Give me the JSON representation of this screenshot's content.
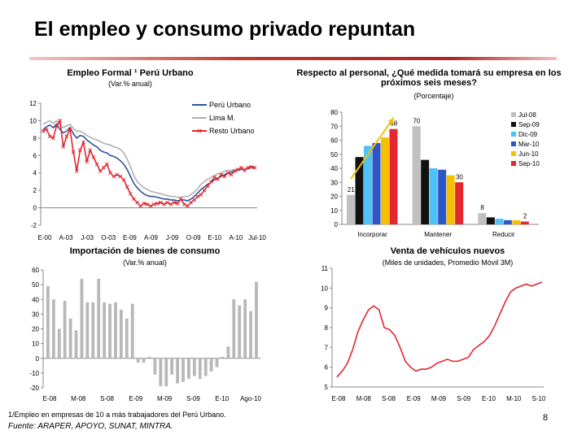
{
  "title": "El empleo y consumo privado repuntan",
  "footnote": "1/Empleo en empresas de 10 a más trabajadores del Perú Urbano.",
  "source": "Fuente: ARAPER, APOYO, SUNAT, MINTRA.",
  "page_number": "8",
  "colors": {
    "rule": "#c0392b"
  },
  "chart_data": [
    {
      "type": "line",
      "title": "Empleo Formal ¹ Perú Urbano",
      "subtitle": "(Var.% anual)",
      "ylim": [
        -2,
        12
      ],
      "yticks": [
        "-2",
        "0",
        "2",
        "4",
        "6",
        "8",
        "10",
        "12"
      ],
      "xticks": [
        "E-00",
        "A-03",
        "J-03",
        "O-03",
        "E-09",
        "A-09",
        "J-09",
        "O-09",
        "E-10",
        "A-10",
        "Jul-10"
      ],
      "x": [
        0,
        1,
        2,
        3,
        4,
        5,
        6,
        7,
        8,
        9,
        10,
        11,
        12,
        13,
        14,
        15,
        16,
        17,
        18,
        19,
        20,
        21,
        22,
        23,
        24,
        25,
        26,
        27,
        28,
        29,
        30,
        31,
        32,
        33,
        34,
        35,
        36,
        37,
        38,
        39,
        40,
        41,
        42,
        43,
        44,
        45,
        46,
        47,
        48,
        49,
        50,
        51,
        52,
        53,
        54,
        55,
        56,
        57,
        58,
        59,
        60,
        61,
        62,
        63
      ],
      "series": [
        {
          "name": "Perú Urbano",
          "color": "#2e5597",
          "values": [
            9.0,
            9.3,
            9.5,
            9.2,
            9.6,
            9.0,
            8.6,
            8.8,
            9.2,
            8.5,
            8.0,
            8.3,
            8.2,
            7.8,
            7.5,
            7.2,
            7.0,
            6.6,
            6.4,
            6.3,
            6.0,
            5.9,
            5.7,
            5.4,
            5.0,
            4.4,
            3.6,
            2.8,
            2.3,
            1.9,
            1.6,
            1.4,
            1.3,
            1.3,
            1.2,
            1.1,
            1.0,
            1.0,
            0.9,
            0.9,
            0.8,
            0.9,
            0.9,
            0.8,
            1.0,
            1.3,
            1.7,
            2.1,
            2.4,
            2.7,
            2.9,
            3.2,
            3.4,
            3.6,
            3.8,
            4.0,
            4.1,
            4.2,
            4.3,
            4.4,
            4.4,
            4.5,
            4.6,
            4.5
          ]
        },
        {
          "name": "Lima M.",
          "color": "#b0b0b0",
          "values": [
            9.6,
            9.8,
            10.0,
            9.7,
            10.0,
            9.5,
            9.2,
            9.4,
            9.6,
            9.1,
            8.8,
            8.8,
            8.6,
            8.3,
            8.1,
            7.9,
            7.8,
            7.6,
            7.4,
            7.3,
            7.2,
            7.0,
            6.9,
            6.7,
            6.3,
            5.6,
            4.7,
            3.7,
            3.0,
            2.6,
            2.3,
            2.1,
            1.9,
            1.8,
            1.7,
            1.6,
            1.5,
            1.4,
            1.3,
            1.3,
            1.2,
            1.2,
            1.3,
            1.3,
            1.5,
            1.8,
            2.2,
            2.7,
            3.0,
            3.3,
            3.5,
            3.7,
            3.9,
            4.0,
            4.2,
            4.3,
            4.3,
            4.4,
            4.4,
            4.5,
            4.5,
            4.6,
            4.6,
            4.5
          ]
        },
        {
          "name": "Resto Urbano",
          "color": "#e3262f",
          "marker": "x",
          "values": [
            8.8,
            9.0,
            8.2,
            8.0,
            9.4,
            10.0,
            7.0,
            8.2,
            9.0,
            6.4,
            4.2,
            6.6,
            7.5,
            5.3,
            6.6,
            5.8,
            5.0,
            4.2,
            4.6,
            5.0,
            4.0,
            3.6,
            3.8,
            3.6,
            3.2,
            2.4,
            1.6,
            1.0,
            0.6,
            0.2,
            0.5,
            0.4,
            0.2,
            0.4,
            0.5,
            0.6,
            0.4,
            0.6,
            0.4,
            0.6,
            0.5,
            1.0,
            0.4,
            0.2,
            0.6,
            0.9,
            1.3,
            1.5,
            2.0,
            2.5,
            3.0,
            3.5,
            3.3,
            3.8,
            3.6,
            4.0,
            3.8,
            4.2,
            4.4,
            4.6,
            4.3,
            4.6,
            4.7,
            4.6
          ]
        }
      ]
    },
    {
      "type": "bar",
      "title": "Respecto al personal, ¿Qué medida tomará su empresa en los próximos seis meses?",
      "subtitle": "(Porcentaje)",
      "ylim": [
        0,
        80
      ],
      "yticks": [
        "0",
        "10",
        "20",
        "30",
        "40",
        "50",
        "60",
        "70",
        "80"
      ],
      "categories": [
        "Incorporar",
        "Mantener",
        "Reducir"
      ],
      "series": [
        {
          "name": "Jul-08",
          "color": "#c0c0c0",
          "values": [
            21,
            70,
            8
          ]
        },
        {
          "name": "Sep-09",
          "color": "#111111",
          "values": [
            48,
            46,
            5
          ]
        },
        {
          "name": "Dic-09",
          "color": "#4fc3f7",
          "values": [
            56,
            40,
            4
          ]
        },
        {
          "name": "Mar-10",
          "color": "#2f56c6",
          "values": [
            58,
            39,
            3
          ]
        },
        {
          "name": "Jun-10",
          "color": "#f6c000",
          "values": [
            62,
            35,
            3
          ]
        },
        {
          "name": "Sep-10",
          "color": "#e3262f",
          "values": [
            68,
            30,
            2
          ]
        }
      ],
      "data_labels": [
        {
          "series": 0,
          "category": 0,
          "text": "21"
        },
        {
          "series": 5,
          "category": 0,
          "text": "68"
        },
        {
          "series": 0,
          "category": 1,
          "text": "70"
        },
        {
          "series": 5,
          "category": 1,
          "text": "30"
        },
        {
          "series": 0,
          "category": 2,
          "text": "8"
        },
        {
          "series": 5,
          "category": 2,
          "text": "2"
        }
      ],
      "arrow_color": "#f6c000"
    },
    {
      "type": "bar",
      "title": "Importación de bienes de consumo",
      "subtitle": "(Var.% anual)",
      "ylim": [
        -20,
        60
      ],
      "yticks": [
        "-20",
        "-10",
        "0",
        "10",
        "20",
        "30",
        "40",
        "50",
        "60"
      ],
      "xticks": [
        "E-08",
        "M-08",
        "S-08",
        "E-09",
        "M-09",
        "S-09",
        "E-10",
        "Ago-10"
      ],
      "color": "#b8b8b8",
      "values": [
        49,
        40,
        20,
        39,
        27,
        19,
        54,
        38,
        38,
        54,
        38,
        37,
        38,
        33,
        27,
        37,
        -3,
        -3,
        1,
        -11,
        -19,
        -19,
        -11,
        -17,
        -16,
        -14,
        -12,
        -14,
        -12,
        -9,
        -6,
        1,
        8,
        40,
        36,
        40,
        32,
        52
      ]
    },
    {
      "type": "line",
      "title": "Venta de vehículos nuevos",
      "subtitle": "(Miles de unidades, Promedio Móvil 3M)",
      "ylim": [
        5,
        11
      ],
      "yticks": [
        "5",
        "6",
        "7",
        "8",
        "9",
        "10",
        "11"
      ],
      "xticks": [
        "E-08",
        "M-08",
        "S-08",
        "E-09",
        "M-09",
        "S-09",
        "E-10",
        "M-10",
        "S-10"
      ],
      "series": [
        {
          "name": "Vehículos",
          "color": "#e3262f",
          "values": [
            5.5,
            5.8,
            6.2,
            6.9,
            7.8,
            8.4,
            8.9,
            9.1,
            8.9,
            8.0,
            7.9,
            7.6,
            7.0,
            6.3,
            6.0,
            5.8,
            5.9,
            5.9,
            6.0,
            6.2,
            6.3,
            6.4,
            6.3,
            6.3,
            6.4,
            6.5,
            6.9,
            7.1,
            7.3,
            7.6,
            8.1,
            8.7,
            9.3,
            9.8,
            10.0,
            10.1,
            10.2,
            10.1,
            10.2,
            10.3
          ]
        }
      ]
    }
  ]
}
